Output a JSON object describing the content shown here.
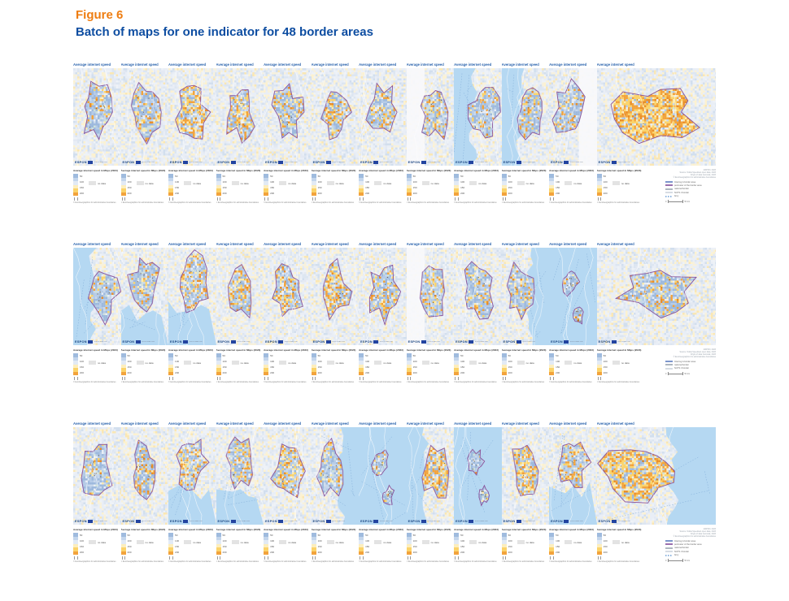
{
  "figure": {
    "label": "Figure 6",
    "title": "Batch of maps for one indicator for 48 border areas"
  },
  "shared": {
    "map_title": "Average internet speed",
    "legend_title": "Average internet speed in Mbps (2023)",
    "legend_ticks": [
      "50",
      "100",
      "150",
      "200"
    ],
    "no_data_label": "no data",
    "copyright": "© EuroGeographics for administrative boundaries",
    "espon": {
      "wordmark": "ESPON",
      "subtext": "EUROPEAN UNION"
    },
    "scale": {
      "start": "0",
      "end": "50 km"
    },
    "source_lines": [
      "ESPON, 2023",
      "Source: Ookla Speedtest open data, 2023",
      "Origin of data: Eurostat, 2023",
      "© EuroGeographics for administrative boundaries"
    ]
  },
  "colors": {
    "accent_orange": "#ee7d11",
    "accent_blue": "#0d4da1",
    "map_title_blue": "#2a63ad",
    "sea": "#b5d8f2",
    "region_outline": "#8a549b",
    "no_data_fill": "#e3e3e3",
    "ramp": [
      "#9fbbde",
      "#c3d5ec",
      "#e2eaf5",
      "#fdeebc",
      "#fbd36a",
      "#f2a33c"
    ]
  },
  "rows": [
    {
      "legend_entries": [
        {
          "label": "Interreg A border area",
          "swatch": "#7c96cc",
          "dashed": false
        },
        {
          "label": "perimeter of the border area",
          "swatch": "#9a6fae",
          "dashed": false
        },
        {
          "label": "national border",
          "swatch": "#aeb6c0",
          "dashed": false
        },
        {
          "label": "NUTS 3 border",
          "swatch": "#d6dce3",
          "dashed": false
        },
        {
          "label": "ferry",
          "swatch": "#8fb6e0",
          "dashed": true
        }
      ],
      "panels": [
        {
          "seed": 11,
          "orange": 0.18
        },
        {
          "seed": 12,
          "orange": 0.22
        },
        {
          "seed": 13,
          "orange": 0.5
        },
        {
          "seed": 14,
          "orange": 0.38
        },
        {
          "seed": 15,
          "orange": 0.22
        },
        {
          "seed": 16,
          "orange": 0.3
        },
        {
          "seed": 17,
          "orange": 0.26
        },
        {
          "seed": 18,
          "orange": 0.2,
          "white": "left"
        },
        {
          "seed": 19,
          "orange": 0.18,
          "sea": "left"
        },
        {
          "seed": 20,
          "orange": 0.22,
          "sea": "left"
        },
        {
          "seed": 21,
          "orange": 0.2,
          "white": "right"
        },
        {
          "seed": 22,
          "orange": 0.8,
          "wide": true
        }
      ]
    },
    {
      "legend_entries": [
        {
          "label": "Interreg A border area",
          "swatch": "#7c96cc",
          "dashed": false
        },
        {
          "label": "national border",
          "swatch": "#aeb6c0",
          "dashed": false
        },
        {
          "label": "NUTS 3 border",
          "swatch": "#d6dce3",
          "dashed": false
        }
      ],
      "panels": [
        {
          "seed": 31,
          "orange": 0.15,
          "sea": "left"
        },
        {
          "seed": 32,
          "orange": 0.15,
          "sea": "bottom"
        },
        {
          "seed": 33,
          "orange": 0.3,
          "sea": "bottom"
        },
        {
          "seed": 34,
          "orange": 0.35
        },
        {
          "seed": 35,
          "orange": 0.3
        },
        {
          "seed": 36,
          "orange": 0.5
        },
        {
          "seed": 37,
          "orange": 0.3
        },
        {
          "seed": 38,
          "orange": 0.2,
          "white": "left"
        },
        {
          "seed": 39,
          "orange": 0.15
        },
        {
          "seed": 40,
          "orange": 0.2,
          "sea": "right"
        },
        {
          "seed": 41,
          "orange": 0.15,
          "sea": "full"
        },
        {
          "seed": 42,
          "orange": 0.22,
          "wide": true
        }
      ]
    },
    {
      "legend_entries": [
        {
          "label": "Interreg A border area",
          "swatch": "#7c96cc",
          "dashed": false
        },
        {
          "label": "perimeter of the border area",
          "swatch": "#9a6fae",
          "dashed": false
        },
        {
          "label": "national border",
          "swatch": "#aeb6c0",
          "dashed": false
        },
        {
          "label": "NUTS 3 border",
          "swatch": "#d6dce3",
          "dashed": false
        },
        {
          "label": "ferry",
          "swatch": "#8fb6e0",
          "dashed": true
        }
      ],
      "panels": [
        {
          "seed": 51,
          "orange": 0.15
        },
        {
          "seed": 52,
          "orange": 0.25
        },
        {
          "seed": 53,
          "orange": 0.3,
          "sea": "bottom"
        },
        {
          "seed": 54,
          "orange": 0.3,
          "sea": "bottom"
        },
        {
          "seed": 55,
          "orange": 0.35
        },
        {
          "seed": 56,
          "orange": 0.2,
          "sea": "right"
        },
        {
          "seed": 57,
          "orange": 0.15,
          "sea": "full"
        },
        {
          "seed": 58,
          "orange": 0.55,
          "sea": "left"
        },
        {
          "seed": 59,
          "orange": 0.1,
          "sea": "full"
        },
        {
          "seed": 60,
          "orange": 0.5
        },
        {
          "seed": 61,
          "orange": 0.3,
          "sea": "bottom"
        },
        {
          "seed": 62,
          "orange": 0.65,
          "sea": "right",
          "wide": true
        }
      ]
    }
  ]
}
